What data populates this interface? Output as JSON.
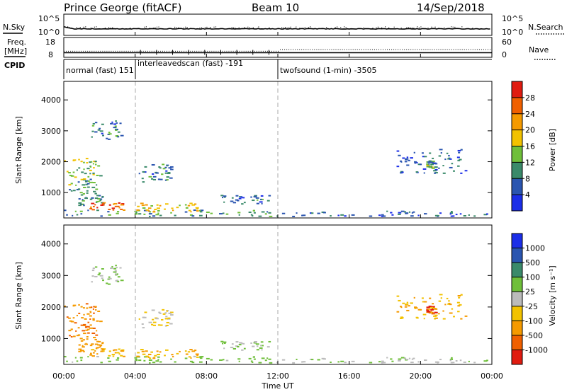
{
  "header": {
    "station": "Prince George (fitACF)",
    "beam": "Beam 10",
    "date": "14/Sep/2018"
  },
  "noise_panel": {
    "left_label": "N.Sky",
    "right_label": "N.Search",
    "left_ticks": [
      "10^5",
      "10^0"
    ],
    "right_ticks": [
      "10^5",
      "10^0"
    ]
  },
  "freq_panel": {
    "left_label_line1": "Freq.",
    "left_label_line2": "[MHz]",
    "right_label": "Nave",
    "left_ticks": [
      "18",
      "8"
    ],
    "right_ticks": [
      "60",
      "0"
    ]
  },
  "cpid": {
    "label": "CPID",
    "segments": [
      {
        "text": "normal (fast) 151",
        "start_hour": 0
      },
      {
        "text": "interleavedscan (fast) -191",
        "start_hour": 4
      },
      {
        "text": "twofsound (1-min) -3505",
        "start_hour": 12
      }
    ]
  },
  "time_axis": {
    "label": "Time UT",
    "ticks": [
      "00:00",
      "04:00",
      "08:00",
      "12:00",
      "16:00",
      "20:00",
      "00:00"
    ]
  },
  "power_panel": {
    "ylabel": "Slant Range [km]",
    "yticks": [
      "1000",
      "2000",
      "3000",
      "4000"
    ],
    "colorbar_label": "Power [dB]",
    "colorbar_ticks": [
      "4",
      "8",
      "12",
      "16",
      "20",
      "24",
      "28"
    ],
    "colors": [
      "#1b2ee8",
      "#2a55b0",
      "#3a8a6a",
      "#6fbf3a",
      "#f2c200",
      "#f59a00",
      "#f06000",
      "#e01b10"
    ]
  },
  "velocity_panel": {
    "ylabel": "Slant Range [km]",
    "yticks": [
      "1000",
      "2000",
      "3000",
      "4000"
    ],
    "colorbar_label": "Velocity [m s⁻¹]",
    "colorbar_ticks": [
      "1000",
      "500",
      "100",
      "25",
      "-25",
      "-100",
      "-500",
      "-1000"
    ],
    "colors": [
      "#1b2ee8",
      "#2a55b0",
      "#3a8a6a",
      "#6fbf3a",
      "#bbbbbb",
      "#f2c200",
      "#f59a00",
      "#f06000",
      "#e01b10"
    ]
  },
  "chart_data": {
    "type": "heatmap",
    "x_range_hours": [
      0,
      24
    ],
    "y_range_km": [
      180,
      4600
    ],
    "grid": false,
    "mode_change_hours": [
      4,
      12
    ],
    "echo_regions": [
      {
        "t0": 0.0,
        "t1": 12.0,
        "r0": 200,
        "r1": 420,
        "power_db": 10,
        "velocity": 50
      },
      {
        "t0": 0.0,
        "t1": 2.0,
        "r0": 1500,
        "r1": 2100,
        "power_db": 14,
        "velocity": -400
      },
      {
        "t0": 0.2,
        "t1": 1.8,
        "r0": 900,
        "r1": 1500,
        "power_db": 12,
        "velocity": -500
      },
      {
        "t0": 0.8,
        "t1": 2.2,
        "r0": 550,
        "r1": 950,
        "power_db": 10,
        "velocity": -300
      },
      {
        "t0": 1.4,
        "t1": 3.4,
        "r0": 400,
        "r1": 650,
        "power_db": 26,
        "velocity": -100
      },
      {
        "t0": 1.5,
        "t1": 3.2,
        "r0": 2700,
        "r1": 3300,
        "power_db": 8,
        "velocity": 25
      },
      {
        "t0": 4.0,
        "t1": 7.5,
        "r0": 350,
        "r1": 650,
        "power_db": 20,
        "velocity": -100
      },
      {
        "t0": 4.2,
        "t1": 6.0,
        "r0": 1300,
        "r1": 1900,
        "power_db": 8,
        "velocity": -25
      },
      {
        "t0": 8.5,
        "t1": 11.5,
        "r0": 600,
        "r1": 900,
        "power_db": 8,
        "velocity": 25
      },
      {
        "t0": 12.0,
        "t1": 24.0,
        "r0": 200,
        "r1": 380,
        "power_db": 6,
        "velocity": 25
      },
      {
        "t0": 20.3,
        "t1": 20.8,
        "r0": 1750,
        "r1": 2000,
        "power_db": 12,
        "velocity": -1000
      },
      {
        "t0": 18.5,
        "t1": 22.5,
        "r0": 1600,
        "r1": 2400,
        "power_db": 6,
        "velocity": -100
      }
    ],
    "noise_sky_log10": 1.2,
    "noise_search_log10": 1.5,
    "frequency_mhz": 10.5,
    "nave": 22
  }
}
